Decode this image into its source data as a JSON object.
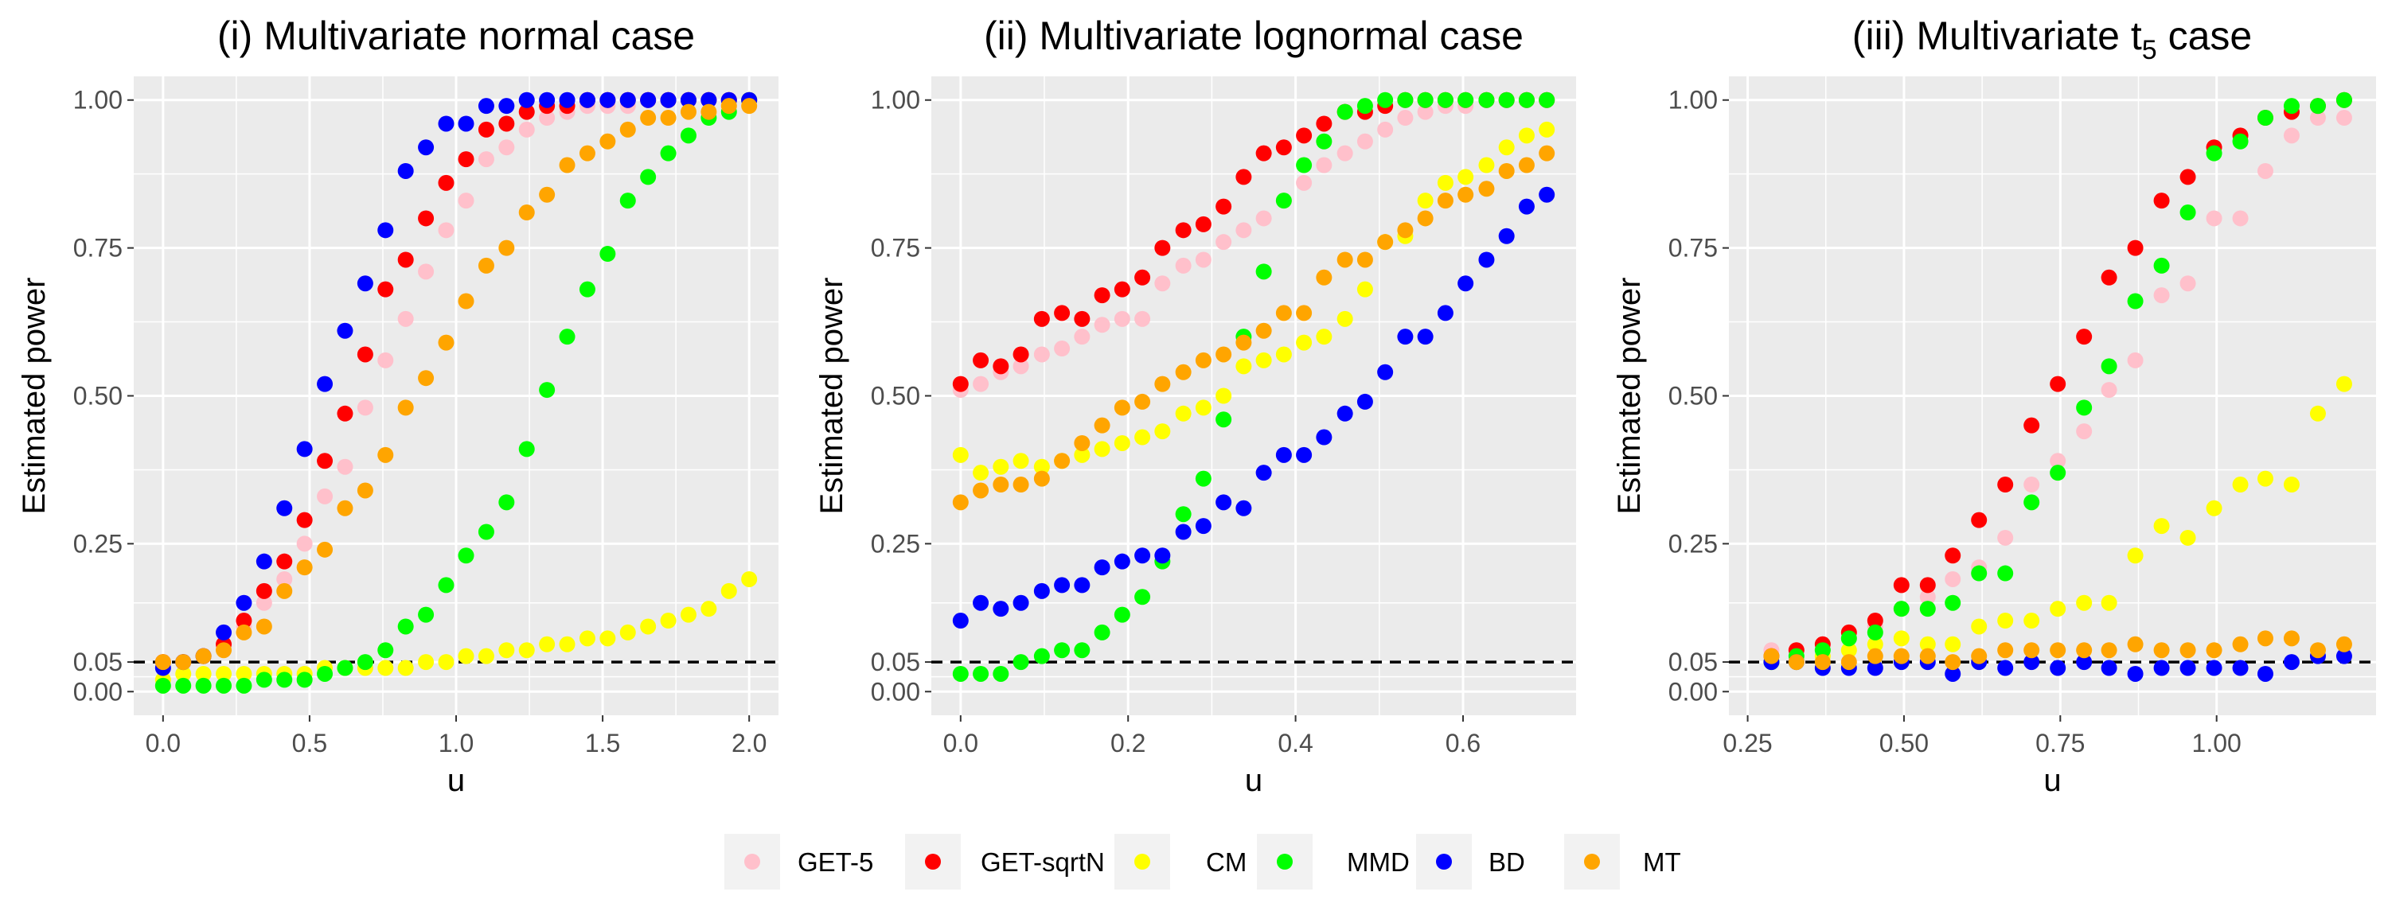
{
  "chart_data": [
    {
      "type": "scatter",
      "title": "(i) Multivariate normal case",
      "xlabel": "u",
      "ylabel": "Estimated power",
      "xlim": [
        -0.1,
        2.1
      ],
      "ylim": [
        -0.04,
        1.04
      ],
      "x_ticks": [
        0.0,
        0.5,
        1.0,
        1.5,
        2.0
      ],
      "x_tick_labels": [
        "0.0",
        "0.5",
        "1.0",
        "1.5",
        "2.0"
      ],
      "y_ticks": [
        0.0,
        0.05,
        0.25,
        0.5,
        0.75,
        1.0
      ],
      "y_tick_labels": [
        "0.00",
        "0.05",
        "0.25",
        "0.50",
        "0.75",
        "1.00"
      ],
      "reference_line": 0.05,
      "x": [
        0,
        0.069,
        0.138,
        0.207,
        0.276,
        0.345,
        0.414,
        0.483,
        0.552,
        0.621,
        0.69,
        0.759,
        0.828,
        0.897,
        0.966,
        1.034,
        1.103,
        1.172,
        1.241,
        1.31,
        1.379,
        1.448,
        1.517,
        1.586,
        1.655,
        1.724,
        1.793,
        1.862,
        1.931,
        2.0
      ],
      "series": [
        {
          "name": "GET-5",
          "values": [
            0.04,
            0.05,
            0.06,
            0.08,
            0.11,
            0.15,
            0.19,
            0.25,
            0.33,
            0.38,
            0.48,
            0.56,
            0.63,
            0.71,
            0.78,
            0.83,
            0.9,
            0.92,
            0.95,
            0.97,
            0.98,
            0.99,
            0.99,
            0.99,
            1.0,
            1.0,
            1.0,
            1.0,
            1.0,
            1.0
          ]
        },
        {
          "name": "GET-sqrtN",
          "values": [
            0.05,
            0.05,
            0.06,
            0.08,
            0.12,
            0.17,
            0.22,
            0.29,
            0.39,
            0.47,
            0.57,
            0.68,
            0.73,
            0.8,
            0.86,
            0.9,
            0.95,
            0.96,
            0.98,
            0.99,
            0.99,
            1.0,
            1.0,
            1.0,
            1.0,
            1.0,
            1.0,
            1.0,
            1.0,
            1.0
          ]
        },
        {
          "name": "CM",
          "values": [
            0.02,
            0.03,
            0.03,
            0.03,
            0.03,
            0.03,
            0.03,
            0.03,
            0.04,
            0.04,
            0.04,
            0.04,
            0.04,
            0.05,
            0.05,
            0.06,
            0.06,
            0.07,
            0.07,
            0.08,
            0.08,
            0.09,
            0.09,
            0.1,
            0.11,
            0.12,
            0.13,
            0.14,
            0.17,
            0.19
          ]
        },
        {
          "name": "MMD",
          "values": [
            0.01,
            0.01,
            0.01,
            0.01,
            0.01,
            0.02,
            0.02,
            0.02,
            0.03,
            0.04,
            0.05,
            0.07,
            0.11,
            0.13,
            0.18,
            0.23,
            0.27,
            0.32,
            0.41,
            0.51,
            0.6,
            0.68,
            0.74,
            0.83,
            0.87,
            0.91,
            0.94,
            0.97,
            0.98,
            1.0
          ]
        },
        {
          "name": "BD",
          "values": [
            0.04,
            0.05,
            0.06,
            0.1,
            0.15,
            0.22,
            0.31,
            0.41,
            0.52,
            0.61,
            0.69,
            0.78,
            0.88,
            0.92,
            0.96,
            0.96,
            0.99,
            0.99,
            1.0,
            1.0,
            1.0,
            1.0,
            1.0,
            1.0,
            1.0,
            1.0,
            1.0,
            1.0,
            1.0,
            1.0
          ]
        },
        {
          "name": "MT",
          "values": [
            0.05,
            0.05,
            0.06,
            0.07,
            0.1,
            0.11,
            0.17,
            0.21,
            0.24,
            0.31,
            0.34,
            0.4,
            0.48,
            0.53,
            0.59,
            0.66,
            0.72,
            0.75,
            0.81,
            0.84,
            0.89,
            0.91,
            0.93,
            0.95,
            0.97,
            0.97,
            0.98,
            0.98,
            0.99,
            0.99
          ]
        }
      ]
    },
    {
      "type": "scatter",
      "title": "(ii) Multivariate lognormal case",
      "xlabel": "u",
      "ylabel": "Estimated power",
      "xlim": [
        -0.035,
        0.735
      ],
      "ylim": [
        -0.04,
        1.04
      ],
      "x_ticks": [
        0.0,
        0.2,
        0.4,
        0.6
      ],
      "x_tick_labels": [
        "0.0",
        "0.2",
        "0.4",
        "0.6"
      ],
      "y_ticks": [
        0.0,
        0.05,
        0.25,
        0.5,
        0.75,
        1.0
      ],
      "y_tick_labels": [
        "0.00",
        "0.05",
        "0.25",
        "0.50",
        "0.75",
        "1.00"
      ],
      "reference_line": 0.05,
      "x": [
        0,
        0.024,
        0.048,
        0.072,
        0.097,
        0.121,
        0.145,
        0.169,
        0.193,
        0.217,
        0.241,
        0.266,
        0.29,
        0.314,
        0.338,
        0.362,
        0.386,
        0.41,
        0.434,
        0.459,
        0.483,
        0.507,
        0.531,
        0.555,
        0.579,
        0.603,
        0.628,
        0.652,
        0.676,
        0.7
      ],
      "series": [
        {
          "name": "GET-5",
          "values": [
            0.51,
            0.52,
            0.54,
            0.55,
            0.57,
            0.58,
            0.6,
            0.62,
            0.63,
            0.63,
            0.69,
            0.72,
            0.73,
            0.76,
            0.78,
            0.8,
            0.83,
            0.86,
            0.89,
            0.91,
            0.93,
            0.95,
            0.97,
            0.98,
            0.99,
            0.99,
            1.0,
            1.0,
            1.0,
            1.0
          ]
        },
        {
          "name": "GET-sqrtN",
          "values": [
            0.52,
            0.56,
            0.55,
            0.57,
            0.63,
            0.64,
            0.63,
            0.67,
            0.68,
            0.7,
            0.75,
            0.78,
            0.79,
            0.82,
            0.87,
            0.91,
            0.92,
            0.94,
            0.96,
            0.98,
            0.98,
            0.99,
            1.0,
            1.0,
            1.0,
            1.0,
            1.0,
            1.0,
            1.0,
            1.0
          ]
        },
        {
          "name": "CM",
          "values": [
            0.4,
            0.37,
            0.38,
            0.39,
            0.38,
            0.39,
            0.4,
            0.41,
            0.42,
            0.43,
            0.44,
            0.47,
            0.48,
            0.5,
            0.55,
            0.56,
            0.57,
            0.59,
            0.6,
            0.63,
            0.68,
            0.76,
            0.77,
            0.83,
            0.86,
            0.87,
            0.89,
            0.92,
            0.94,
            0.95
          ]
        },
        {
          "name": "MMD",
          "values": [
            0.03,
            0.03,
            0.03,
            0.05,
            0.06,
            0.07,
            0.07,
            0.1,
            0.13,
            0.16,
            0.22,
            0.3,
            0.36,
            0.46,
            0.6,
            0.71,
            0.83,
            0.89,
            0.93,
            0.98,
            0.99,
            1.0,
            1.0,
            1.0,
            1.0,
            1.0,
            1.0,
            1.0,
            1.0,
            1.0
          ]
        },
        {
          "name": "BD",
          "values": [
            0.12,
            0.15,
            0.14,
            0.15,
            0.17,
            0.18,
            0.18,
            0.21,
            0.22,
            0.23,
            0.23,
            0.27,
            0.28,
            0.32,
            0.31,
            0.37,
            0.4,
            0.4,
            0.43,
            0.47,
            0.49,
            0.54,
            0.6,
            0.6,
            0.64,
            0.69,
            0.73,
            0.77,
            0.82,
            0.84
          ]
        },
        {
          "name": "MT",
          "values": [
            0.32,
            0.34,
            0.35,
            0.35,
            0.36,
            0.39,
            0.42,
            0.45,
            0.48,
            0.49,
            0.52,
            0.54,
            0.56,
            0.57,
            0.59,
            0.61,
            0.64,
            0.64,
            0.7,
            0.73,
            0.73,
            0.76,
            0.78,
            0.8,
            0.83,
            0.84,
            0.85,
            0.88,
            0.89,
            0.91
          ]
        }
      ]
    },
    {
      "type": "scatter",
      "title": "(iii) Multivariate t",
      "title_subscript": "5",
      "title_suffix": " case",
      "xlabel": "u",
      "ylabel": "Estimated power",
      "xlim": [
        0.22,
        1.255
      ],
      "ylim": [
        -0.04,
        1.04
      ],
      "x_ticks": [
        0.25,
        0.5,
        0.75,
        1.0
      ],
      "x_tick_labels": [
        "0.25",
        "0.50",
        "0.75",
        "1.00"
      ],
      "y_ticks": [
        0.0,
        0.05,
        0.25,
        0.5,
        0.75,
        1.0
      ],
      "y_tick_labels": [
        "0.00",
        "0.05",
        "0.25",
        "0.50",
        "0.75",
        "1.00"
      ],
      "reference_line": 0.05,
      "x": [
        0.288,
        0.328,
        0.37,
        0.412,
        0.454,
        0.496,
        0.538,
        0.578,
        0.62,
        0.662,
        0.704,
        0.746,
        0.788,
        0.828,
        0.87,
        0.912,
        0.954,
        0.996,
        1.038,
        1.078,
        1.12,
        1.162,
        1.204
      ],
      "series": [
        {
          "name": "GET-5",
          "values": [
            0.07,
            0.07,
            0.07,
            0.09,
            0.11,
            0.14,
            0.16,
            0.19,
            0.21,
            0.26,
            0.35,
            0.39,
            0.44,
            0.51,
            0.56,
            0.67,
            0.69,
            0.8,
            0.8,
            0.88,
            0.94,
            0.97,
            0.97
          ]
        },
        {
          "name": "GET-sqrtN",
          "values": [
            0.06,
            0.07,
            0.08,
            0.1,
            0.12,
            0.18,
            0.18,
            0.23,
            0.29,
            0.35,
            0.45,
            0.52,
            0.6,
            0.7,
            0.75,
            0.83,
            0.87,
            0.92,
            0.94,
            0.97,
            0.98,
            0.99,
            1.0
          ]
        },
        {
          "name": "CM",
          "values": [
            0.05,
            0.05,
            0.06,
            0.07,
            0.08,
            0.09,
            0.08,
            0.08,
            0.11,
            0.12,
            0.12,
            0.14,
            0.15,
            0.15,
            0.23,
            0.28,
            0.26,
            0.31,
            0.35,
            0.36,
            0.35,
            0.47,
            0.52
          ]
        },
        {
          "name": "MMD",
          "values": [
            0.05,
            0.06,
            0.07,
            0.09,
            0.1,
            0.14,
            0.14,
            0.15,
            0.2,
            0.2,
            0.32,
            0.37,
            0.48,
            0.55,
            0.66,
            0.72,
            0.81,
            0.91,
            0.93,
            0.97,
            0.99,
            0.99,
            1.0
          ]
        },
        {
          "name": "BD",
          "values": [
            0.05,
            0.05,
            0.04,
            0.04,
            0.04,
            0.05,
            0.05,
            0.03,
            0.05,
            0.04,
            0.05,
            0.04,
            0.05,
            0.04,
            0.03,
            0.04,
            0.04,
            0.04,
            0.04,
            0.03,
            0.05,
            0.06,
            0.06
          ]
        },
        {
          "name": "MT",
          "values": [
            0.06,
            0.05,
            0.05,
            0.05,
            0.06,
            0.06,
            0.06,
            0.05,
            0.06,
            0.07,
            0.07,
            0.07,
            0.07,
            0.07,
            0.08,
            0.07,
            0.07,
            0.07,
            0.08,
            0.09,
            0.09,
            0.07,
            0.08
          ]
        }
      ]
    }
  ],
  "legend": {
    "placement": "bottom",
    "items": [
      {
        "name": "GET-5",
        "color": "#ffc0cb"
      },
      {
        "name": "GET-sqrtN",
        "color": "#ff0000"
      },
      {
        "name": "CM",
        "color": "#ffff00"
      },
      {
        "name": "MMD",
        "color": "#00ff00"
      },
      {
        "name": "BD",
        "color": "#0000ff"
      },
      {
        "name": "MT",
        "color": "#ffa500"
      }
    ]
  },
  "colors": {
    "panel_background": "#ebebeb",
    "grid_major": "#ffffff",
    "reference_line": "#000000"
  }
}
